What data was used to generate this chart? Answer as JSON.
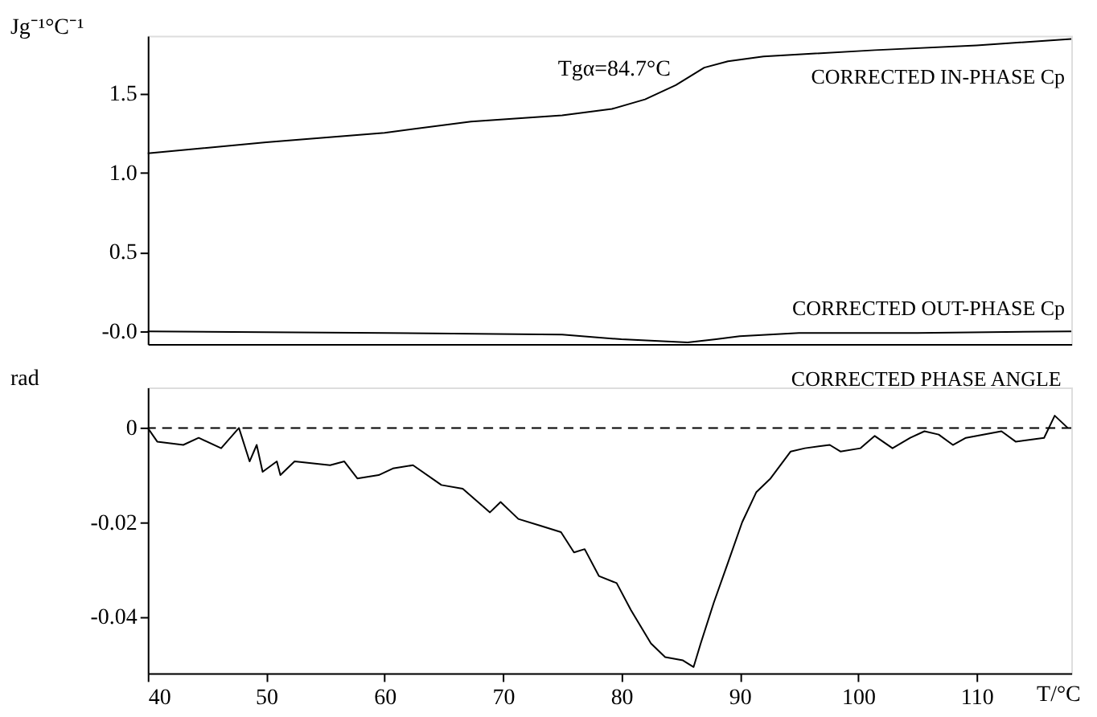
{
  "chart_data": [
    {
      "type": "line",
      "ylabel": "Jg⁻¹°C⁻¹",
      "xlim": [
        40,
        118
      ],
      "ylim": [
        -0.08,
        1.86
      ],
      "yticks": [
        {
          "value": 0,
          "label": "-0.0"
        },
        {
          "value": 0.5,
          "label": "0.5"
        },
        {
          "value": 1.0,
          "label": "1.0"
        },
        {
          "value": 1.5,
          "label": "1.5"
        }
      ],
      "tick_labels": "y",
      "grid": false,
      "legend": false,
      "marker": "none",
      "line_style": "solid",
      "annotations": [
        {
          "text": "Tgα=84.7°C",
          "x": 84.7,
          "y": 1.55
        }
      ],
      "series": [
        {
          "name": "CORRECTED IN-PHASE Cp",
          "color": "#000000",
          "x": [
            40,
            50,
            60,
            67.3,
            75,
            79.2,
            82,
            84.6,
            87,
            89,
            92,
            101.4,
            110,
            118
          ],
          "values": [
            1.12,
            1.19,
            1.25,
            1.32,
            1.36,
            1.4,
            1.46,
            1.55,
            1.66,
            1.7,
            1.73,
            1.77,
            1.8,
            1.84
          ]
        },
        {
          "name": "CORRECTED OUT-PHASE Cp",
          "color": "#000000",
          "x": [
            40,
            60,
            75,
            80,
            85.6,
            88,
            90,
            95,
            105,
            118
          ],
          "values": [
            0,
            -0.01,
            -0.02,
            -0.05,
            -0.07,
            -0.05,
            -0.03,
            -0.01,
            -0.01,
            0
          ]
        }
      ]
    },
    {
      "type": "line",
      "ylabel": "rad",
      "xlabel": "T/°C",
      "xlim": [
        40,
        118
      ],
      "ylim": [
        -0.052,
        0.0086
      ],
      "xticks": [
        40,
        50,
        60,
        70,
        80,
        90,
        100,
        110
      ],
      "yticks": [
        0,
        -0.02,
        -0.04
      ],
      "grid": false,
      "legend": false,
      "marker": "none",
      "line_style": "solid",
      "ref_lines": [
        {
          "axis": "y",
          "value": 0,
          "color": "#000000",
          "line_style": "dashed"
        }
      ],
      "series": [
        {
          "name": "CORRECTED PHASE ANGLE",
          "color": "#000000",
          "x": [
            40,
            40.8,
            43,
            44.3,
            46.2,
            47.7,
            48.6,
            49.2,
            49.7,
            50.9,
            51.2,
            52.4,
            55.4,
            56.6,
            57.7,
            59.5,
            60.7,
            62.4,
            64.8,
            66.6,
            68.9,
            69.8,
            71.3,
            73.1,
            74.9,
            76.0,
            76.9,
            78.1,
            79.6,
            80.8,
            82.5,
            83.7,
            85.2,
            86.1,
            86.7,
            87.8,
            89.0,
            90.2,
            91.4,
            92.6,
            94.3,
            95.5,
            97.6,
            98.5,
            100.2,
            101.4,
            102.9,
            104.4,
            105.6,
            106.8,
            108.0,
            109.1,
            112.1,
            113.3,
            115.7,
            116.6,
            117.7
          ],
          "values": [
            0,
            -0.0029,
            -0.0036,
            -0.0021,
            -0.0043,
            0,
            -0.0071,
            -0.0036,
            -0.0093,
            -0.0071,
            -0.01,
            -0.0071,
            -0.0079,
            -0.0071,
            -0.0107,
            -0.01,
            -0.0086,
            -0.0079,
            -0.0121,
            -0.0129,
            -0.0179,
            -0.0157,
            -0.0193,
            -0.0207,
            -0.0221,
            -0.0264,
            -0.0257,
            -0.0314,
            -0.0329,
            -0.0386,
            -0.0457,
            -0.0486,
            -0.0493,
            -0.0507,
            -0.0457,
            -0.0371,
            -0.0286,
            -0.02,
            -0.0136,
            -0.0107,
            -0.005,
            -0.0043,
            -0.0036,
            -0.005,
            -0.0043,
            -0.0017,
            -0.0043,
            -0.0021,
            -0.0007,
            -0.0014,
            -0.0036,
            -0.0021,
            -0.0007,
            -0.0029,
            -0.0021,
            0.0026,
            0
          ]
        }
      ]
    }
  ]
}
